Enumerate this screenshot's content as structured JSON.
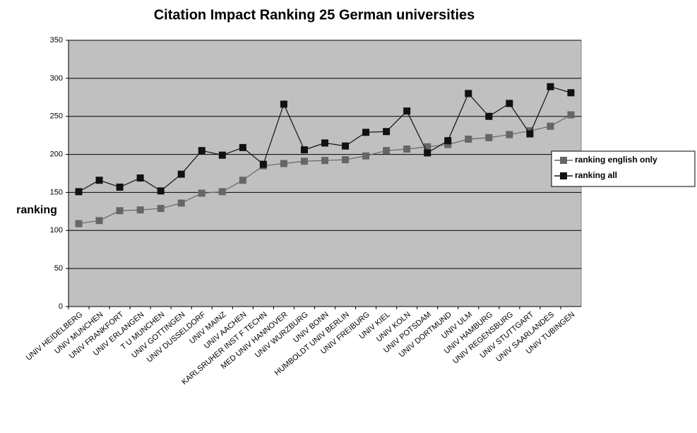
{
  "chart_data": {
    "type": "line",
    "title": "Citation Impact Ranking 25 German universities",
    "y_label": "ranking",
    "categories": [
      "UNIV HEIDELBERG",
      "UNIV MUNCHEN",
      "UNIV FRANKFORT",
      "UNIV ERLANGEN",
      "T U MUNCHEN",
      "UNIV GOTTINGEN",
      "UNIV DUSSELDORF",
      "UNIV MAINZ",
      "UNIV AACHEN",
      "KARLSRUHER INST F TECHN",
      "MED UNIV HANNOVER",
      "UNIV WURZBURG",
      "UNIV BONN",
      "HUMBOLDT UNIV BERLIN",
      "UNIV FREIBURG",
      "UNIV KIEL",
      "UNIV KOLN",
      "UNIV POTSDAM",
      "UNIV DORTMUND",
      "UNIV ULM",
      "UNIV HAMBURG",
      "UNIV REGENSBURG",
      "UNIV STUTTGART",
      "UNIV SAARLANDES",
      "UNIV TUBINGEN"
    ],
    "series": [
      {
        "name": "ranking english only",
        "color": "#666666",
        "values": [
          109,
          113,
          126,
          127,
          129,
          136,
          149,
          151,
          166,
          185,
          188,
          191,
          192,
          193,
          198,
          205,
          207,
          210,
          213,
          220,
          222,
          226,
          231,
          237,
          252
        ]
      },
      {
        "name": "ranking all",
        "color": "#111111",
        "values": [
          151,
          166,
          157,
          169,
          152,
          174,
          205,
          199,
          209,
          187,
          266,
          206,
          215,
          211,
          229,
          230,
          257,
          202,
          218,
          280,
          250,
          267,
          227,
          289,
          281
        ]
      }
    ],
    "ylim": [
      0,
      350
    ],
    "yticks": [
      0,
      50,
      100,
      150,
      200,
      250,
      300,
      350
    ],
    "grid": true,
    "legend": "right"
  }
}
